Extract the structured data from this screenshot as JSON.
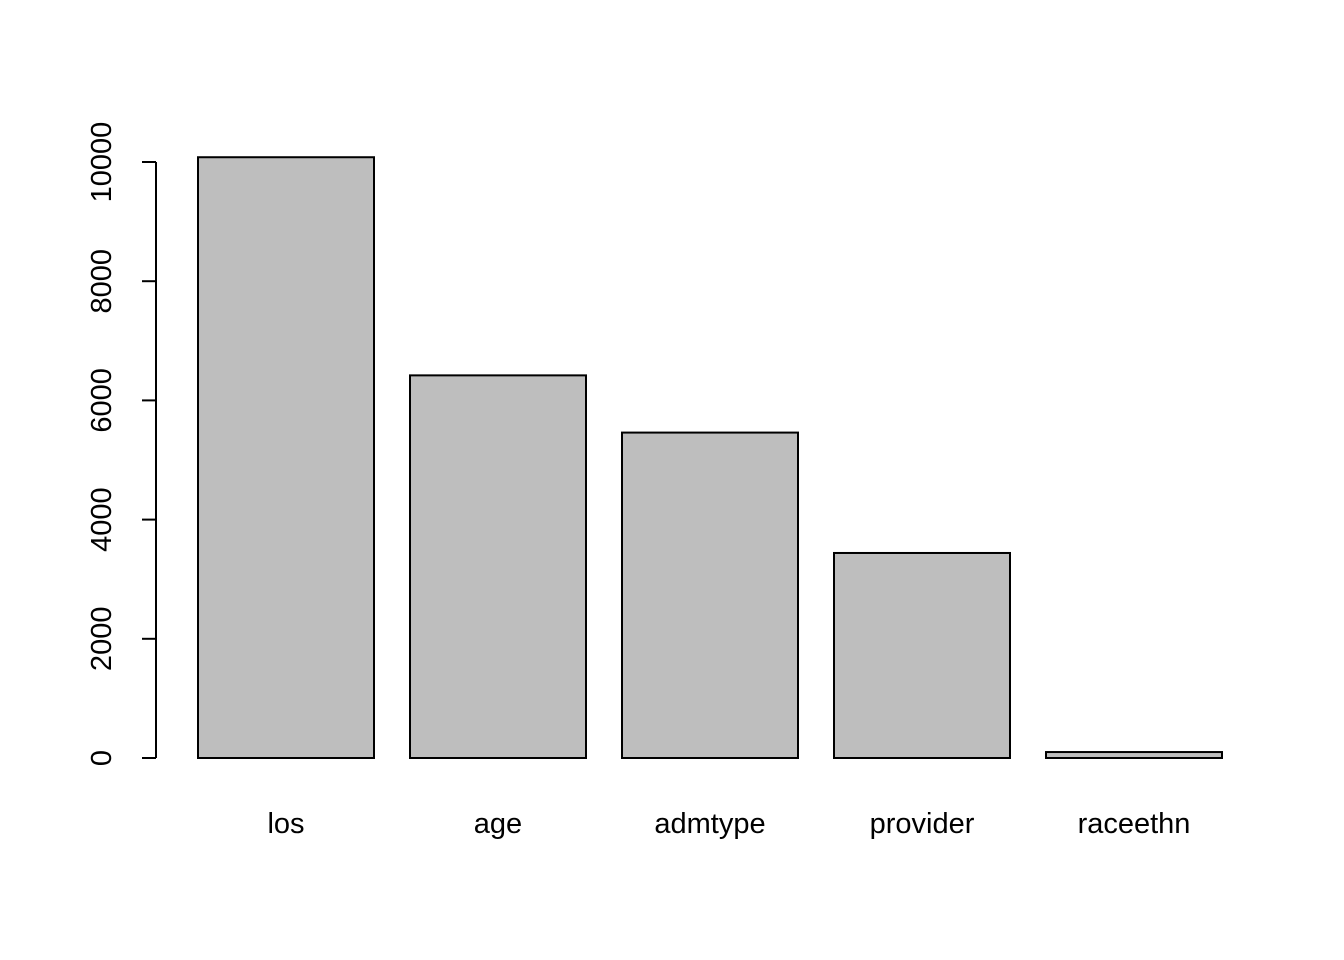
{
  "chart_data": {
    "type": "bar",
    "title": "",
    "xlabel": "",
    "ylabel": "",
    "categories": [
      "los",
      "age",
      "admtype",
      "provider",
      "raceethn"
    ],
    "values": [
      10080,
      6420,
      5460,
      3440,
      100
    ],
    "ylim": [
      0,
      10000
    ],
    "yticks": [
      0,
      2000,
      4000,
      6000,
      8000,
      10000
    ],
    "ytick_labels": [
      "0",
      "2000",
      "4000",
      "6000",
      "8000",
      "10000"
    ],
    "bar_color": "#bebebe",
    "grid": false,
    "legend": "none"
  }
}
